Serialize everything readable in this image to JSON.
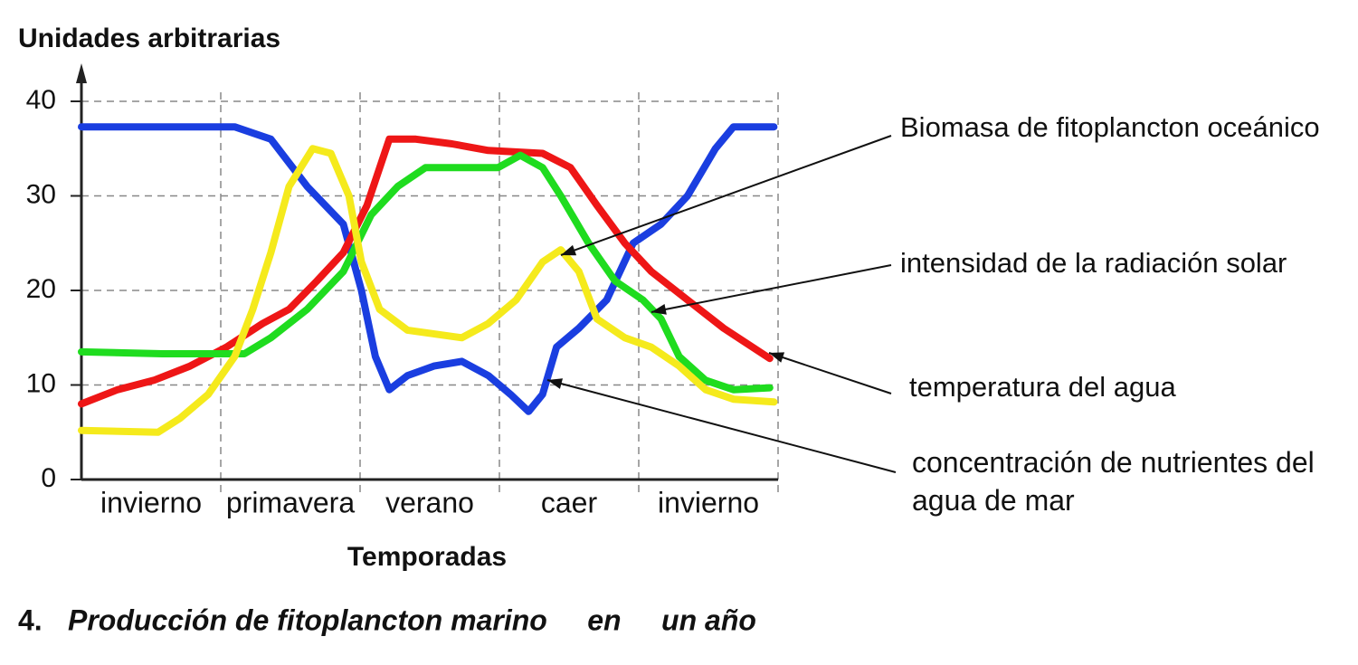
{
  "chart_data": {
    "type": "line",
    "title": "Producción de fitoplancton marino     en     un año",
    "caption_number": "4.",
    "y_label": "Unidades arbitrarias",
    "x_label": "Temporadas",
    "categories": [
      "invierno",
      "primavera",
      "verano",
      "caer",
      "invierno"
    ],
    "xlim": [
      0,
      5
    ],
    "ylim": [
      0,
      40
    ],
    "yticks": [
      0,
      10,
      20,
      30,
      40
    ],
    "grid": true,
    "series": [
      {
        "name": "Biomasa de fitoplancton oceánico",
        "color": "#f5ea1c",
        "x": [
          0,
          0.55,
          0.71,
          0.91,
          1.1,
          1.23,
          1.36,
          1.49,
          1.66,
          1.79,
          1.92,
          2.01,
          2.14,
          2.34,
          2.73,
          2.92,
          3.12,
          3.31,
          3.44,
          3.57,
          3.7,
          3.9,
          4.09,
          4.29,
          4.48,
          4.68,
          4.97
        ],
        "values": [
          5.2,
          5,
          6.5,
          9,
          13,
          18,
          24,
          31,
          35,
          34.5,
          30,
          23,
          18,
          15.8,
          15,
          16.5,
          19,
          23,
          24.3,
          22,
          17,
          15,
          14,
          12,
          9.5,
          8.5,
          8.2
        ]
      },
      {
        "name": "intensidad de la radiación solar",
        "color": "#1fdc1f",
        "x": [
          0,
          0.58,
          1.17,
          1.36,
          1.62,
          1.88,
          2.08,
          2.27,
          2.47,
          2.73,
          2.99,
          3.15,
          3.31,
          3.44,
          3.64,
          3.83,
          4.03,
          4.16,
          4.29,
          4.48,
          4.68,
          4.94
        ],
        "values": [
          13.5,
          13.3,
          13.3,
          15,
          18,
          22,
          28,
          31,
          33,
          33,
          33,
          34.3,
          33,
          30,
          25,
          21,
          19,
          17,
          13,
          10.5,
          9.5,
          9.7
        ]
      },
      {
        "name": "temperatura del agua",
        "color": "#ee1616",
        "x": [
          0,
          0.26,
          0.52,
          0.78,
          1.04,
          1.3,
          1.49,
          1.69,
          1.88,
          2.05,
          2.21,
          2.4,
          2.66,
          2.92,
          3.31,
          3.51,
          3.7,
          3.9,
          4.09,
          4.35,
          4.61,
          4.94
        ],
        "values": [
          8,
          9.5,
          10.5,
          12,
          14,
          16.5,
          18,
          21,
          24,
          29,
          36,
          36,
          35.5,
          34.8,
          34.5,
          33,
          29,
          25,
          22,
          19,
          16,
          12.8
        ]
      },
      {
        "name": "concentración de nutrientes del agua de mar",
        "color": "#1a3ee0",
        "x": [
          0,
          1.1,
          1.36,
          1.62,
          1.88,
          2.01,
          2.11,
          2.21,
          2.34,
          2.53,
          2.73,
          2.92,
          3.08,
          3.21,
          3.31,
          3.41,
          3.57,
          3.77,
          3.96,
          4.16,
          4.35,
          4.55,
          4.68,
          4.97
        ],
        "values": [
          37.3,
          37.3,
          36,
          31,
          27,
          20,
          13,
          9.5,
          11,
          12,
          12.5,
          11,
          9,
          7.2,
          9,
          14,
          16,
          19,
          25,
          27,
          30,
          35,
          37.3,
          37.3
        ]
      }
    ]
  }
}
